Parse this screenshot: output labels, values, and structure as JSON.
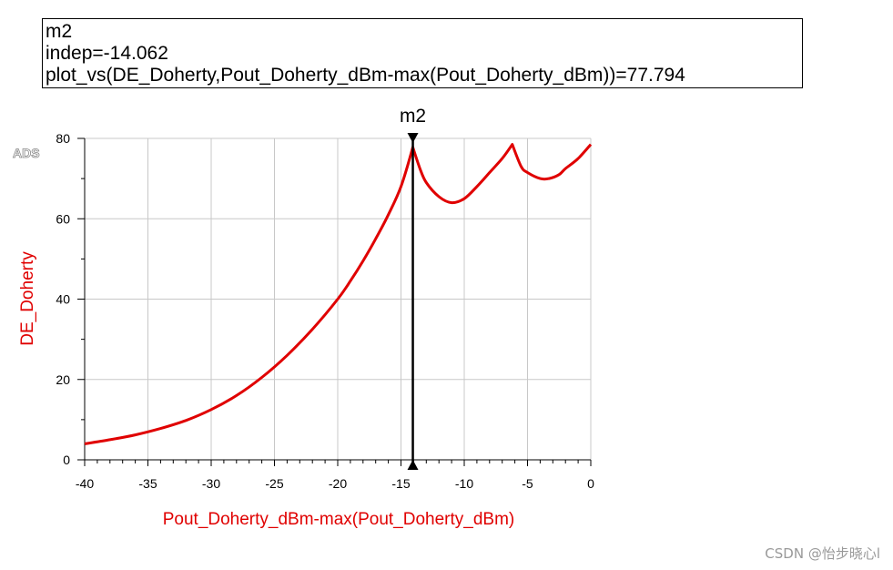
{
  "marker_readout": {
    "name": "m2",
    "indep_line": "indep=-14.062",
    "expr_line": "plot_vs(DE_Doherty,Pout_Doherty_dBm-max(Pout_Doherty_dBm))=77.794"
  },
  "watermark": "CSDN @怡步晓心l",
  "colors": {
    "trace": "#e00000",
    "grid": "#c8c8c8",
    "axis": "#000000",
    "marker": "#000000"
  },
  "chart_data": {
    "type": "line",
    "title": "",
    "brand_label": "ADS",
    "xlabel": "Pout_Doherty_dBm-max(Pout_Doherty_dBm)",
    "ylabel": "DE_Doherty",
    "xlim": [
      -40,
      0
    ],
    "ylim": [
      0,
      80
    ],
    "x_ticks": [
      "-40",
      "-35",
      "-30",
      "-25",
      "-20",
      "-15",
      "-10",
      "-5",
      "0"
    ],
    "y_ticks": [
      "0",
      "20",
      "40",
      "60",
      "80"
    ],
    "grid": true,
    "series": [
      {
        "x": [
          -40,
          -38,
          -36,
          -34,
          -32,
          -30,
          -28,
          -26,
          -24,
          -22,
          -20,
          -19,
          -18,
          -17,
          -16,
          -15,
          -14.062,
          -13.5,
          -13,
          -12,
          -11,
          -10,
          -9,
          -8,
          -7,
          -6.2,
          -5.5,
          -5,
          -4,
          -3.3,
          -2.5,
          -2,
          -1,
          0
        ],
        "y": [
          4,
          5,
          6.2,
          7.8,
          9.8,
          12.5,
          16,
          20.5,
          26,
          32.5,
          40,
          44.5,
          49.5,
          55,
          61,
          68,
          77.794,
          72.5,
          69,
          65.5,
          64,
          65,
          68,
          71.5,
          75,
          78.5,
          73,
          71.5,
          70,
          70,
          71,
          72.5,
          75,
          78.5
        ]
      }
    ],
    "marker": {
      "label": "m2",
      "x": -14.062,
      "y": 77.794
    }
  }
}
